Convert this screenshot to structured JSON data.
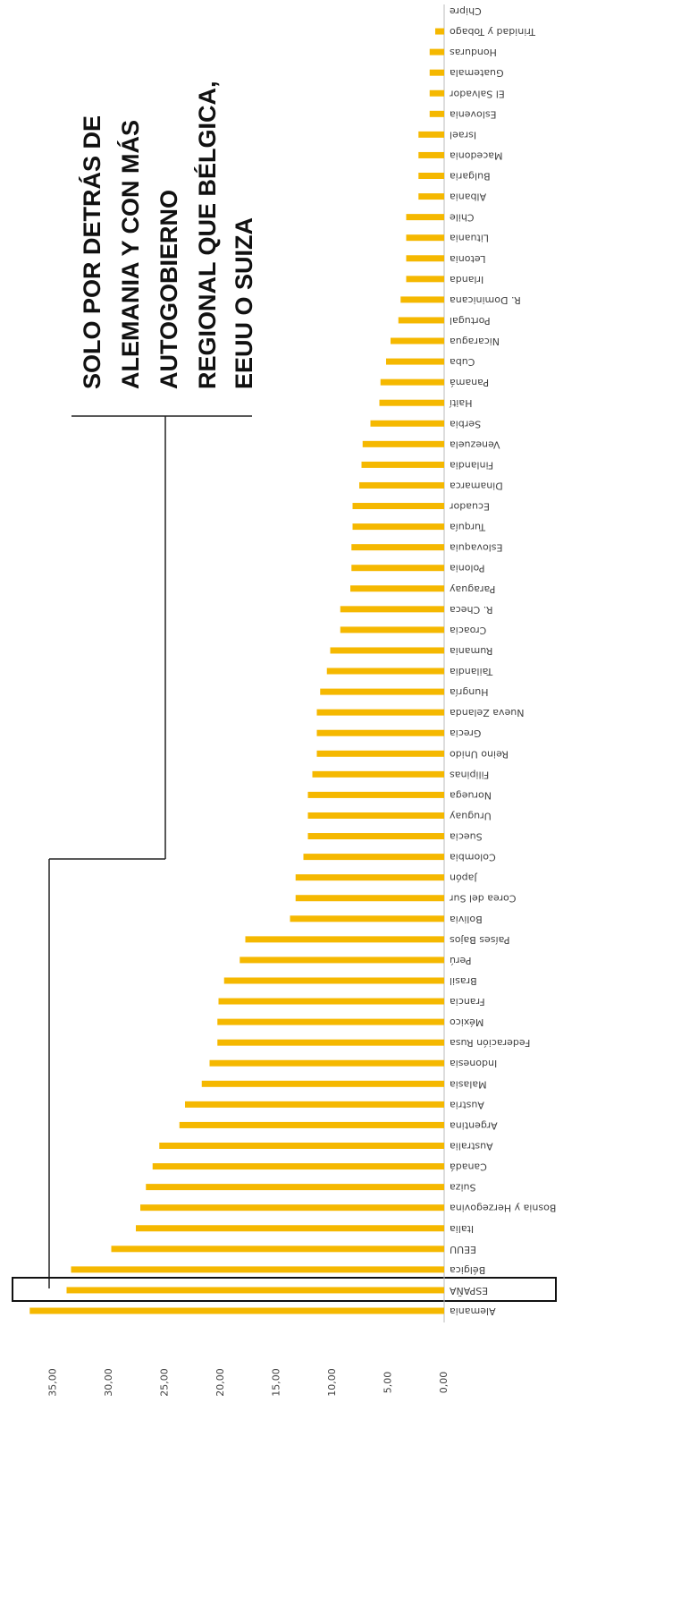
{
  "chart_data": {
    "type": "bar",
    "orientation": "horizontal",
    "color": "#f5b800",
    "categories": [
      "Alemania",
      "ESPAÑA",
      "Bélgica",
      "EEUU",
      "Italia",
      "Bosnia y Herzegovina",
      "Suiza",
      "Canadá",
      "Australia",
      "Argentina",
      "Austria",
      "Malasia",
      "Indonesia",
      "Federación Rusa",
      "México",
      "Francia",
      "Brasil",
      "Perú",
      "Países Bajos",
      "Bolivia",
      "Corea del Sur",
      "Japón",
      "Colombia",
      "Suecia",
      "Uruguay",
      "Noruega",
      "Filipinas",
      "Reino Unido",
      "Grecia",
      "Nueva Zelanda",
      "Hungría",
      "Tailandia",
      "Rumania",
      "Croacia",
      "R. Checa",
      "Paraguay",
      "Polonia",
      "Eslovaquia",
      "Turquía",
      "Ecuador",
      "Dinamarca",
      "Finlandia",
      "Venezuela",
      "Serbia",
      "Haití",
      "Panamá",
      "Cuba",
      "Nicaragua",
      "Portugal",
      "R. Dominicana",
      "Irlanda",
      "Letonia",
      "Lituania",
      "Chile",
      "Albania",
      "Bulgaria",
      "Macedonia",
      "Israel",
      "Eslovenia",
      "El Salvador",
      "Guatemala",
      "Honduras",
      "Trinidad y Tobago",
      "Chipre"
    ],
    "values": [
      37.1,
      33.8,
      33.4,
      29.8,
      27.6,
      27.2,
      26.7,
      26.1,
      25.5,
      23.7,
      23.2,
      21.7,
      21.0,
      20.3,
      20.3,
      20.2,
      19.7,
      18.3,
      17.8,
      13.8,
      13.3,
      13.3,
      12.6,
      12.2,
      12.2,
      12.2,
      11.8,
      11.4,
      11.4,
      11.4,
      11.1,
      10.5,
      10.2,
      9.3,
      9.3,
      8.4,
      8.3,
      8.3,
      8.2,
      8.2,
      7.6,
      7.4,
      7.3,
      6.6,
      5.8,
      5.7,
      5.2,
      4.8,
      4.1,
      3.9,
      3.4,
      3.4,
      3.4,
      3.4,
      2.3,
      2.3,
      2.3,
      2.3,
      1.3,
      1.3,
      1.3,
      1.3,
      0.8,
      0
    ],
    "xlim": [
      0,
      40
    ],
    "xticks": [
      {
        "value": 0,
        "label": "0,00"
      },
      {
        "value": 5,
        "label": "5,00"
      },
      {
        "value": 10,
        "label": "10,00"
      },
      {
        "value": 15,
        "label": "15,00"
      },
      {
        "value": 20,
        "label": "20,00"
      },
      {
        "value": 25,
        "label": "25,00"
      },
      {
        "value": 30,
        "label": "30,00"
      },
      {
        "value": 35,
        "label": "35,00"
      }
    ],
    "annotation": [
      "SOLO POR DETRÁS DE",
      "ALEMANIA Y CON MÁS",
      "AUTOGOBIERNO",
      "REGIONAL QUE BÉLGICA,",
      "EEUU O SUIZA"
    ]
  }
}
